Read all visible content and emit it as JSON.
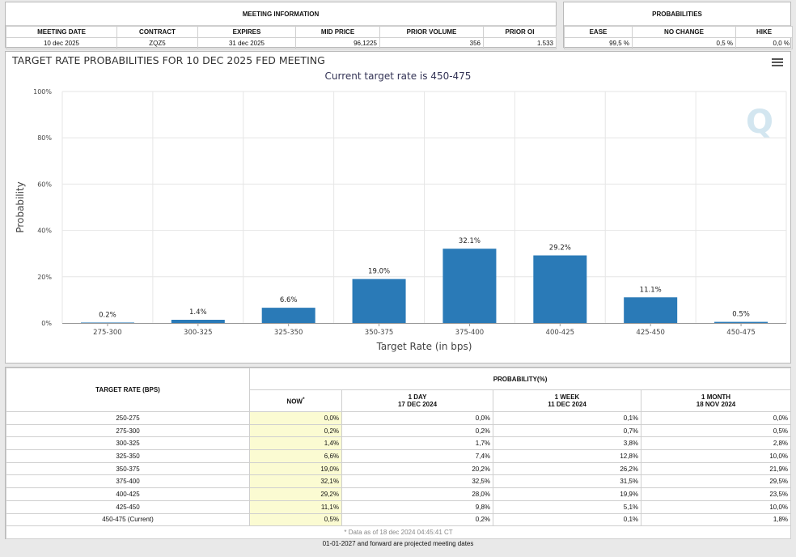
{
  "meeting_info": {
    "title": "MEETING INFORMATION",
    "headers": [
      "MEETING DATE",
      "CONTRACT",
      "EXPIRES",
      "MID PRICE",
      "PRIOR VOLUME",
      "PRIOR OI"
    ],
    "values": [
      "10 dec 2025",
      "ZQZ5",
      "31 dec 2025",
      "96,1225",
      "356",
      "1.533"
    ]
  },
  "probabilities": {
    "title": "PROBABILITIES",
    "headers": [
      "EASE",
      "NO CHANGE",
      "HIKE"
    ],
    "values": [
      "99,5 %",
      "0,5 %",
      "0,0 %"
    ]
  },
  "chart_data": {
    "type": "bar",
    "title": "TARGET RATE PROBABILITIES FOR 10 DEC 2025 FED MEETING",
    "subtitle": "Current target rate is 450-475",
    "xlabel": "Target Rate (in bps)",
    "ylabel": "Probability",
    "ylim": [
      0,
      100
    ],
    "yticks": [
      "0%",
      "20%",
      "40%",
      "60%",
      "80%",
      "100%"
    ],
    "categories": [
      "275-300",
      "300-325",
      "325-350",
      "350-375",
      "375-400",
      "400-425",
      "425-450",
      "450-475"
    ],
    "values": [
      0.2,
      1.4,
      6.6,
      19.0,
      32.1,
      29.2,
      11.1,
      0.5
    ],
    "labels": [
      "0.2%",
      "1.4%",
      "6.6%",
      "19.0%",
      "32.1%",
      "29.2%",
      "11.1%",
      "0.5%"
    ],
    "bar_color": "#2a7ab7",
    "grid": true,
    "watermark": "Q"
  },
  "prob_table": {
    "rate_header": "TARGET RATE (BPS)",
    "group_header": "PROBABILITY(%)",
    "columns": [
      {
        "line1": "NOW",
        "line2": "",
        "marker": "*"
      },
      {
        "line1": "1 DAY",
        "line2": "17 DEC 2024"
      },
      {
        "line1": "1 WEEK",
        "line2": "11 DEC 2024"
      },
      {
        "line1": "1 MONTH",
        "line2": "18 NOV 2024"
      }
    ],
    "rows": [
      {
        "rate": "250-275",
        "now": "0,0%",
        "d1": "0,0%",
        "w1": "0,1%",
        "m1": "0,0%"
      },
      {
        "rate": "275-300",
        "now": "0,2%",
        "d1": "0,2%",
        "w1": "0,7%",
        "m1": "0,5%"
      },
      {
        "rate": "300-325",
        "now": "1,4%",
        "d1": "1,7%",
        "w1": "3,8%",
        "m1": "2,8%"
      },
      {
        "rate": "325-350",
        "now": "6,6%",
        "d1": "7,4%",
        "w1": "12,8%",
        "m1": "10,0%"
      },
      {
        "rate": "350-375",
        "now": "19,0%",
        "d1": "20,2%",
        "w1": "26,2%",
        "m1": "21,9%"
      },
      {
        "rate": "375-400",
        "now": "32,1%",
        "d1": "32,5%",
        "w1": "31,5%",
        "m1": "29,5%"
      },
      {
        "rate": "400-425",
        "now": "29,2%",
        "d1": "28,0%",
        "w1": "19,9%",
        "m1": "23,5%"
      },
      {
        "rate": "425-450",
        "now": "11,1%",
        "d1": "9,8%",
        "w1": "5,1%",
        "m1": "10,0%"
      },
      {
        "rate": "450-475 (Current)",
        "now": "0,5%",
        "d1": "0,2%",
        "w1": "0,1%",
        "m1": "1,8%"
      }
    ],
    "footnote": "* Data as of 18 dec 2024 04:45:41 CT"
  },
  "bottom_note": "01-01-2027 and forward are projected meeting dates"
}
